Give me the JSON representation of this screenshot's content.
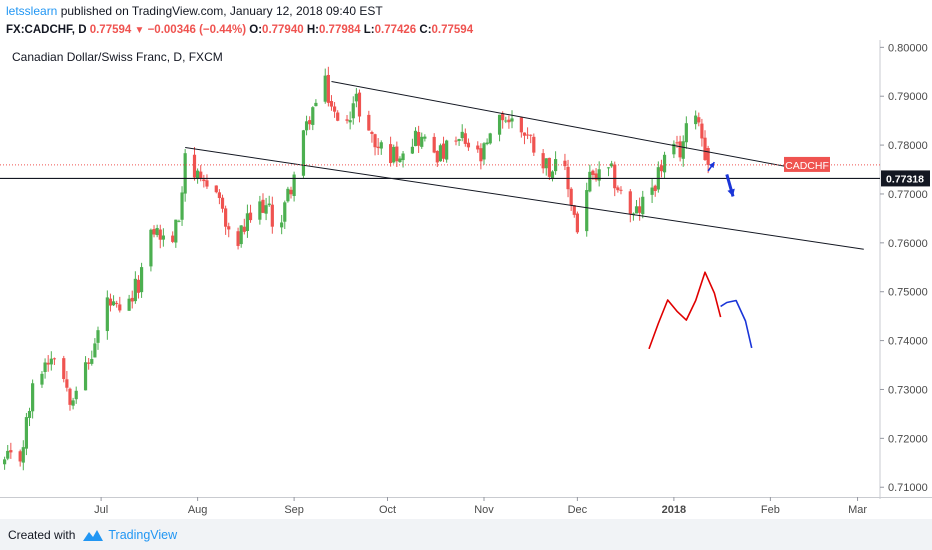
{
  "header": {
    "author": "letsslearn",
    "published_text": "published on TradingView.com, January 12, 2018 09:40 EST",
    "symbol": "FX:CADCHF, D",
    "last": "0.77594",
    "change": "−0.00346 (−0.44%)",
    "o_label": "O:",
    "o_value": "0.77940",
    "h_label": "H:",
    "h_value": "0.77984",
    "l_label": "L:",
    "l_value": "0.77426",
    "c_label": "C:",
    "c_value": "0.77594"
  },
  "footer": {
    "created_with": "Created with",
    "brand": "TradingView"
  },
  "colors": {
    "up": "#4caf50",
    "down": "#ef5350",
    "price_tag": "#ef5350",
    "level_tag": "#131722",
    "trendline": "#131722",
    "arrow_blue": "#1a35d8",
    "path_red": "#e00000",
    "path_blue": "#1a35d8"
  },
  "chart_data": {
    "type": "candlestick",
    "title": "Canadian Dollar/Swiss Franc, D, FXCM",
    "y_ticks": [
      "0.80000",
      "0.79000",
      "0.78000",
      "0.77000",
      "0.76000",
      "0.75000",
      "0.74000",
      "0.73000",
      "0.72000",
      "0.71000"
    ],
    "ylim": [
      0.708,
      0.8015
    ],
    "x_ticks": [
      "Jul",
      "Aug",
      "Sep",
      "Oct",
      "Nov",
      "Dec",
      "2018",
      "Feb",
      "Mar"
    ],
    "price_tag": {
      "label": "CADCHF",
      "value": 0.77594
    },
    "level": {
      "label": "0.77318",
      "value": 0.77318
    },
    "grid": false,
    "trendlines": [
      {
        "from": [
          "2017-07-28",
          0.7795
        ],
        "to": [
          "2018-03-03",
          0.7587
        ]
      },
      {
        "from": [
          "2017-09-13",
          0.793
        ],
        "to": [
          "2018-02-13",
          0.7748
        ]
      }
    ],
    "anchors": [
      [
        "2017-05-31",
        0.715
      ],
      [
        "2017-06-05",
        0.716
      ],
      [
        "2017-06-10",
        0.733
      ],
      [
        "2017-06-16",
        0.738
      ],
      [
        "2017-06-21",
        0.729
      ],
      [
        "2017-06-27",
        0.735
      ],
      [
        "2017-07-03",
        0.748
      ],
      [
        "2017-07-08",
        0.744
      ],
      [
        "2017-07-13",
        0.752
      ],
      [
        "2017-07-18",
        0.763
      ],
      [
        "2017-07-23",
        0.759
      ],
      [
        "2017-07-26",
        0.765
      ],
      [
        "2017-07-28",
        0.779
      ],
      [
        "2017-08-02",
        0.771
      ],
      [
        "2017-08-07",
        0.772
      ],
      [
        "2017-08-12",
        0.758
      ],
      [
        "2017-08-17",
        0.764
      ],
      [
        "2017-08-22",
        0.768
      ],
      [
        "2017-08-27",
        0.763
      ],
      [
        "2017-09-01",
        0.774
      ],
      [
        "2017-09-06",
        0.786
      ],
      [
        "2017-09-11",
        0.792
      ],
      [
        "2017-09-15",
        0.784
      ],
      [
        "2017-09-21",
        0.789
      ],
      [
        "2017-09-27",
        0.78
      ],
      [
        "2017-10-03",
        0.778
      ],
      [
        "2017-10-10",
        0.782
      ],
      [
        "2017-10-18",
        0.778
      ],
      [
        "2017-10-25",
        0.781
      ],
      [
        "2017-10-31",
        0.777
      ],
      [
        "2017-11-07",
        0.786
      ],
      [
        "2017-11-14",
        0.783
      ],
      [
        "2017-11-21",
        0.776
      ],
      [
        "2017-11-27",
        0.774
      ],
      [
        "2017-12-01",
        0.763
      ],
      [
        "2017-12-05",
        0.773
      ],
      [
        "2017-12-12",
        0.774
      ],
      [
        "2017-12-19",
        0.765
      ],
      [
        "2017-12-24",
        0.77
      ],
      [
        "2017-12-29",
        0.777
      ],
      [
        "2018-01-03",
        0.779
      ],
      [
        "2018-01-08",
        0.788
      ],
      [
        "2018-01-12",
        0.77594
      ]
    ],
    "annotations": {
      "small_arrow_up": {
        "from": [
          "2018-01-12",
          0.7747
        ],
        "to": [
          "2018-01-14",
          0.7765
        ]
      },
      "down_arrow": {
        "from": [
          "2018-01-18",
          0.774
        ],
        "to": [
          "2018-01-20",
          0.7695
        ]
      },
      "red_path": [
        [
          "2017-12-24",
          0.7383
        ],
        [
          "2017-12-27",
          0.7435
        ],
        [
          "2017-12-30",
          0.7483
        ],
        [
          "2018-01-02",
          0.746
        ],
        [
          "2018-01-05",
          0.7442
        ],
        [
          "2018-01-08",
          0.7482
        ],
        [
          "2018-01-11",
          0.754
        ],
        [
          "2018-01-14",
          0.7497
        ],
        [
          "2018-01-16",
          0.7448
        ]
      ],
      "blue_path": [
        [
          "2018-01-16",
          0.747
        ],
        [
          "2018-01-18",
          0.7478
        ],
        [
          "2018-01-21",
          0.7482
        ],
        [
          "2018-01-24",
          0.744
        ],
        [
          "2018-01-26",
          0.7385
        ]
      ]
    }
  }
}
